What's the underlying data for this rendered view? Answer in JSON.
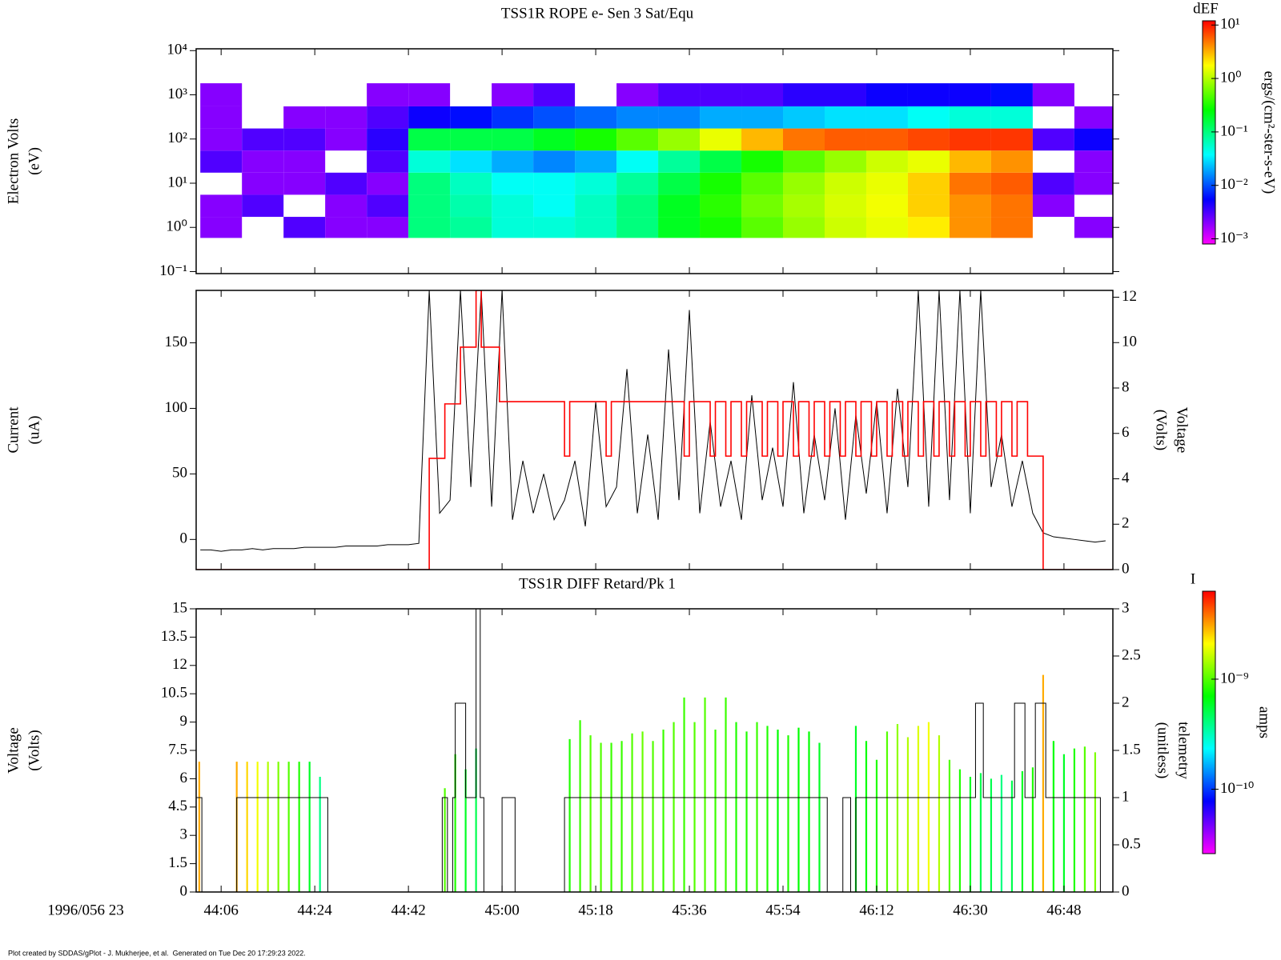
{
  "time_axis": {
    "xlim": [
      1.2,
      177.4
    ],
    "xticks": [
      {
        "value": 6,
        "label": "44:06"
      },
      {
        "value": 24,
        "label": "44:24"
      },
      {
        "value": 42,
        "label": "44:42"
      },
      {
        "value": 60,
        "label": "45:00"
      },
      {
        "value": 78,
        "label": "45:18"
      },
      {
        "value": 96,
        "label": "45:36"
      },
      {
        "value": 114,
        "label": "45:54"
      },
      {
        "value": 132,
        "label": "46:12"
      },
      {
        "value": 150,
        "label": "46:30"
      },
      {
        "value": 168,
        "label": "46:48"
      }
    ],
    "date_label": "1996/056 23"
  },
  "footer": "Plot created by SDDAS/gPlot - J. Mukherjee, et al.  Generated on Tue Dec 20 17:29:23 2022.",
  "chart_data": [
    {
      "type": "spectrogram",
      "title": "TSS1R ROPE e- Sen 3 Sat/Equ",
      "ylabel": "Electron Volts",
      "ylabel_unit": "(eV)",
      "yscale": "log",
      "ylim": [
        0.09,
        11000
      ],
      "yticks": [
        {
          "value": 0.1,
          "label": "10⁻¹"
        },
        {
          "value": 1,
          "label": "10⁰"
        },
        {
          "value": 10,
          "label": "10¹"
        },
        {
          "value": 100,
          "label": "10²"
        },
        {
          "value": 1000,
          "label": "10³"
        },
        {
          "value": 10000,
          "label": "10⁴"
        }
      ],
      "x": [
        6,
        14,
        22,
        30,
        38,
        46,
        54,
        62,
        70,
        78,
        86,
        94,
        102,
        110,
        118,
        126,
        134,
        142,
        150,
        158,
        166,
        174
      ],
      "y": [
        1,
        3,
        10,
        30,
        100,
        300,
        1000
      ],
      "values": [
        [
          0.002,
          null,
          0.003,
          0.002,
          0.002,
          0.1,
          0.08,
          0.05,
          0.05,
          0.06,
          0.1,
          0.2,
          0.3,
          0.5,
          0.8,
          1.2,
          1.5,
          2,
          4,
          5,
          null,
          0.002
        ],
        [
          0.002,
          0.003,
          null,
          0.002,
          0.003,
          0.1,
          0.07,
          0.05,
          0.04,
          0.06,
          0.1,
          0.2,
          0.35,
          0.6,
          0.9,
          1.3,
          1.6,
          2.5,
          4,
          5,
          0.002,
          null
        ],
        [
          null,
          0.002,
          0.002,
          0.003,
          0.002,
          0.1,
          0.06,
          0.04,
          0.04,
          0.05,
          0.08,
          0.15,
          0.3,
          0.5,
          0.8,
          1.2,
          1.5,
          2.5,
          5,
          6,
          0.003,
          0.002
        ],
        [
          0.003,
          0.002,
          0.002,
          null,
          0.003,
          0.05,
          0.03,
          0.02,
          0.015,
          0.02,
          0.04,
          0.08,
          0.15,
          0.3,
          0.5,
          0.8,
          1.2,
          1.5,
          3,
          4,
          null,
          0.002
        ],
        [
          0.002,
          0.003,
          0.003,
          0.002,
          0.004,
          0.15,
          0.15,
          0.15,
          0.2,
          0.3,
          0.5,
          0.8,
          1.5,
          3,
          5,
          6,
          6,
          7,
          8,
          8,
          0.003,
          0.005
        ],
        [
          0.002,
          null,
          0.002,
          0.002,
          0.003,
          0.005,
          0.006,
          0.008,
          0.01,
          0.012,
          0.015,
          0.015,
          0.02,
          0.02,
          0.025,
          0.03,
          0.03,
          0.04,
          0.05,
          0.05,
          null,
          0.002
        ],
        [
          0.002,
          null,
          null,
          null,
          0.002,
          0.002,
          null,
          0.002,
          0.003,
          null,
          0.002,
          0.003,
          0.003,
          0.003,
          0.004,
          0.004,
          0.005,
          0.005,
          0.005,
          0.006,
          0.002,
          null
        ]
      ],
      "colorbar": {
        "title": "dEF",
        "label": "ergs/(cm²-ster-s-eV)",
        "scale": "log",
        "clim": [
          0.0008,
          12
        ],
        "ticks": [
          {
            "value": 10,
            "label": "10¹"
          },
          {
            "value": 1,
            "label": "10⁰"
          },
          {
            "value": 0.1,
            "label": "10⁻¹"
          },
          {
            "value": 0.01,
            "label": "10⁻²"
          },
          {
            "value": 0.001,
            "label": "10⁻³"
          }
        ],
        "colormap": [
          "#ff00ff",
          "#0000ff",
          "#00ffff",
          "#00ff00",
          "#ffff00",
          "#ff0000"
        ]
      }
    },
    {
      "type": "line",
      "ylabel": "Current",
      "ylabel_unit": "(uA)",
      "y2label": "Voltage",
      "y2label_unit": "(Volts)",
      "ylim": [
        -23,
        190
      ],
      "yticks": [
        0,
        50,
        100,
        150
      ],
      "y2lim": [
        0,
        12.3
      ],
      "y2ticks": [
        0,
        2,
        4,
        6,
        8,
        10,
        12
      ],
      "series": [
        {
          "color": "#000000",
          "x": [
            2,
            4,
            6,
            8,
            10,
            12,
            14,
            16,
            18,
            20,
            22,
            24,
            26,
            28,
            30,
            32,
            34,
            36,
            38,
            40,
            42,
            44,
            46,
            48,
            50,
            52,
            54,
            56,
            58,
            60,
            62,
            64,
            66,
            68,
            70,
            72,
            74,
            76,
            78,
            80,
            82,
            84,
            86,
            88,
            90,
            92,
            94,
            96,
            98,
            100,
            102,
            104,
            106,
            108,
            110,
            112,
            114,
            116,
            118,
            120,
            122,
            124,
            126,
            128,
            130,
            132,
            134,
            136,
            138,
            140,
            142,
            144,
            146,
            148,
            150,
            152,
            154,
            156,
            158,
            160,
            162,
            164,
            166,
            168,
            170,
            172,
            174,
            176
          ],
          "values": [
            -8,
            -8,
            -9,
            -8,
            -8,
            -7,
            -8,
            -7,
            -7,
            -7,
            -6,
            -6,
            -6,
            -6,
            -5,
            -5,
            -5,
            -5,
            -4,
            -4,
            -4,
            -3,
            190,
            20,
            30,
            190,
            40,
            190,
            25,
            190,
            15,
            60,
            20,
            50,
            15,
            30,
            60,
            10,
            105,
            25,
            40,
            130,
            20,
            80,
            15,
            145,
            30,
            175,
            20,
            90,
            25,
            60,
            15,
            110,
            30,
            70,
            25,
            120,
            20,
            80,
            30,
            100,
            15,
            95,
            35,
            105,
            20,
            115,
            40,
            190,
            25,
            190,
            30,
            190,
            20,
            190,
            40,
            80,
            25,
            60,
            20,
            5,
            2,
            1,
            0,
            -1,
            -2,
            -1
          ]
        },
        {
          "color": "#ff0000",
          "axis": "y2",
          "step": true,
          "x": [
            1.2,
            46,
            49,
            52,
            55,
            56,
            59.5,
            72,
            73,
            80,
            81,
            95,
            96,
            100,
            101,
            103,
            104,
            106,
            107,
            110,
            111,
            113,
            114,
            116,
            117,
            119,
            120,
            122,
            123,
            125,
            126,
            128,
            129,
            131,
            132,
            134,
            135,
            137,
            138,
            140,
            141,
            143,
            144,
            146,
            147,
            149,
            150,
            152,
            153,
            155,
            156,
            158,
            159,
            161,
            164
          ],
          "values": [
            0,
            4.9,
            7.3,
            9.8,
            12.3,
            9.8,
            7.4,
            5,
            7.4,
            5,
            7.4,
            5,
            7.4,
            5,
            7.4,
            5,
            7.4,
            5,
            7.4,
            5,
            7.4,
            5,
            7.4,
            5,
            7.4,
            5,
            7.4,
            5,
            7.4,
            5,
            7.4,
            5,
            7.4,
            5,
            7.4,
            5,
            7.4,
            5,
            7.4,
            5,
            7.4,
            5,
            7.4,
            5,
            7.4,
            5,
            7.4,
            5,
            7.4,
            5,
            7.4,
            5,
            7.4,
            5,
            0
          ]
        }
      ]
    },
    {
      "type": "stripes",
      "title": "TSS1R DIFF Retard/Pk 1",
      "ylabel": "Voltage",
      "ylabel_unit": "(Volts)",
      "y2label": "telemetry",
      "y2label_unit": "(unitless)",
      "ylim": [
        0,
        15
      ],
      "yticks": [
        0,
        1.5,
        3,
        4.5,
        6,
        7.5,
        9,
        10.5,
        12,
        13.5,
        15
      ],
      "y2lim": [
        0,
        3
      ],
      "y2ticks": [
        0,
        0.5,
        1,
        1.5,
        2,
        2.5,
        3
      ],
      "stripes": {
        "x": [
          1.8,
          9,
          11,
          13,
          15,
          17,
          19,
          21,
          23,
          25,
          49,
          51,
          53,
          55,
          73,
          75,
          77,
          79,
          81,
          83,
          85,
          87,
          89,
          91,
          93,
          95,
          97,
          99,
          101,
          103,
          105,
          107,
          109,
          111,
          113,
          115,
          117,
          119,
          121,
          128,
          130,
          132,
          134,
          136,
          138,
          140,
          142,
          144,
          146,
          148,
          150,
          152,
          154,
          156,
          158,
          160,
          162,
          164,
          166,
          168,
          170,
          172,
          174
        ],
        "tops": [
          6.9,
          6.9,
          6.9,
          6.9,
          6.9,
          6.9,
          6.9,
          6.9,
          6.9,
          6.1,
          5.5,
          7.3,
          6.5,
          7.6,
          8.1,
          9.1,
          8.3,
          7.9,
          7.9,
          8.0,
          8.4,
          8.5,
          8.0,
          8.6,
          9.0,
          10.3,
          9.0,
          10.3,
          8.6,
          10.3,
          9.0,
          8.5,
          9.0,
          8.8,
          8.6,
          8.3,
          8.7,
          8.5,
          7.9,
          8.8,
          8.0,
          7.0,
          8.5,
          8.9,
          8.2,
          8.8,
          9.0,
          8.3,
          7.0,
          6.5,
          6.1,
          6.3,
          6.0,
          6.2,
          5.9,
          6.4,
          6.6,
          11.5,
          8.0,
          7.3,
          7.6,
          7.7,
          7.4
        ],
        "values": [
          3e-09,
          3e-09,
          2.5e-09,
          2e-09,
          1.5e-09,
          1.2e-09,
          1e-09,
          8e-10,
          6e-10,
          4e-10,
          1e-09,
          8e-10,
          6e-10,
          5e-10,
          8e-10,
          9e-10,
          1e-09,
          1e-09,
          9e-10,
          9e-10,
          1e-09,
          1.1e-09,
          1e-09,
          9e-10,
          1e-09,
          9e-10,
          1e-09,
          1e-09,
          9e-10,
          9e-10,
          8e-10,
          8e-10,
          9e-10,
          8e-10,
          7e-10,
          8e-10,
          7e-10,
          7e-10,
          6e-10,
          6e-10,
          7e-10,
          8e-10,
          1e-09,
          1.3e-09,
          1.5e-09,
          1.8e-09,
          2e-09,
          1.5e-09,
          1e-09,
          8e-10,
          6e-10,
          5e-10,
          5e-10,
          4e-10,
          5e-10,
          6e-10,
          8e-10,
          3e-09,
          7e-10,
          6e-10,
          8e-10,
          1e-09,
          1.2e-09
        ]
      },
      "series": [
        {
          "color": "#000000",
          "axis": "y2",
          "step": true,
          "x": [
            1.2,
            2.3,
            9,
            26.5,
            48.5,
            49.5,
            50.5,
            51,
            53,
            55,
            55.8,
            56.5,
            60,
            62.5,
            72,
            122.5,
            125.5,
            127,
            128,
            151,
            152.5,
            158.5,
            160.5,
            162.5,
            164.5,
            175
          ],
          "values": [
            1,
            0,
            1,
            0,
            1,
            0,
            1,
            2,
            1,
            3,
            1,
            0,
            1,
            0,
            1,
            0,
            1,
            0,
            1,
            2,
            1,
            2,
            1,
            2,
            1,
            0
          ]
        }
      ],
      "colorbar": {
        "title": "I",
        "label": "amps",
        "scale": "log",
        "clim": [
          2.6e-11,
          6.3e-09
        ],
        "ticks": [
          {
            "value": 1e-09,
            "label": "10⁻⁹"
          },
          {
            "value": 1e-10,
            "label": "10⁻¹⁰"
          }
        ],
        "colormap": [
          "#ff00ff",
          "#0000ff",
          "#00ffff",
          "#00ff00",
          "#ffff00",
          "#ff0000"
        ]
      }
    }
  ]
}
